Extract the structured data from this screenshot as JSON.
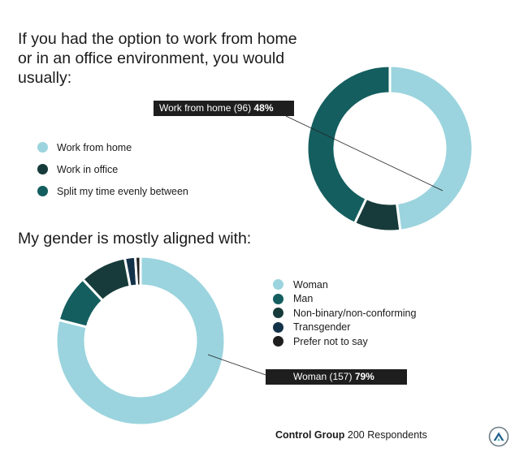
{
  "header": {
    "q1_title": "If you had the option to work from home or in an office environment, you would usually:",
    "q2_title": "My gender is mostly aligned with:"
  },
  "colors": {
    "light": "#9bd4de",
    "mid": "#145e5f",
    "dark": "#163b3a",
    "navy": "#13324a",
    "black": "#1e1e1e"
  },
  "chart_data": [
    {
      "type": "pie",
      "variant": "donut",
      "title": "If you had the option to work from home or in an office environment, you would usually:",
      "categories": [
        "Work from home",
        "Work in office",
        "Split my time evenly between"
      ],
      "values": [
        48,
        9,
        43
      ],
      "colors": [
        "#9bd4de",
        "#163b3a",
        "#145e5f"
      ],
      "annotation": {
        "label": "Work from home (96)",
        "value": "48%"
      }
    },
    {
      "type": "pie",
      "variant": "donut",
      "title": "My gender is mostly aligned with:",
      "categories": [
        "Woman",
        "Man",
        "Non-binary/non-conforming",
        "Transgender",
        "Prefer not to say"
      ],
      "values": [
        79,
        9,
        9,
        2,
        1
      ],
      "colors": [
        "#9bd4de",
        "#145e5f",
        "#163b3a",
        "#13324a",
        "#1e1e1e"
      ],
      "annotation": {
        "label": "Woman (157)",
        "value": "79%"
      }
    }
  ],
  "footer": {
    "group": "Control Group",
    "respondents": "200 Respondents"
  },
  "logo": {
    "icon": "mountain-logo-icon"
  }
}
